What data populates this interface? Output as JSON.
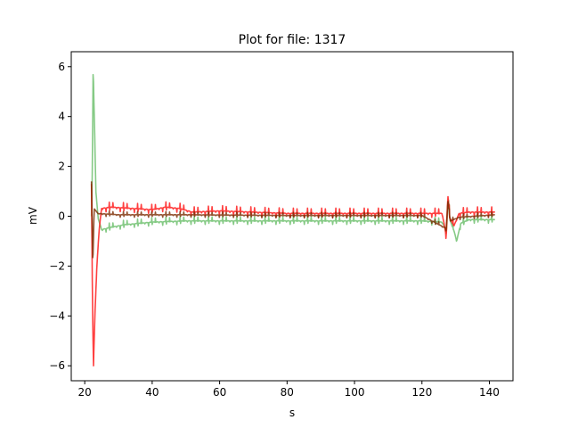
{
  "chart_data": {
    "type": "line",
    "title": "Plot for file: 1317",
    "xlabel": "s",
    "ylabel": "mV",
    "xlim": [
      16,
      147
    ],
    "ylim": [
      -6.6,
      6.6
    ],
    "x_ticks": [
      20,
      40,
      60,
      80,
      100,
      120,
      140
    ],
    "y_ticks": [
      -6,
      -4,
      -2,
      0,
      2,
      4,
      6
    ],
    "grid": false,
    "legend": "none",
    "series": [
      {
        "color": "#5cb85c",
        "alpha": 0.75,
        "start": 22.0,
        "end": 141.7,
        "anchors": [
          [
            22.0,
            0
          ],
          [
            22.2,
            1.2
          ],
          [
            22.5,
            6.0
          ],
          [
            22.9,
            3.6
          ],
          [
            23.3,
            1.0
          ],
          [
            24.0,
            -0.1
          ],
          [
            25.0,
            -0.55
          ],
          [
            28,
            -0.45
          ],
          [
            32,
            -0.35
          ],
          [
            40,
            -0.25
          ],
          [
            50,
            -0.2
          ],
          [
            60,
            -0.2
          ],
          [
            80,
            -0.2
          ],
          [
            100,
            -0.2
          ],
          [
            120,
            -0.2
          ],
          [
            126,
            -0.25
          ],
          [
            127.3,
            -0.6
          ],
          [
            127.8,
            0.7
          ],
          [
            128.4,
            -0.2
          ],
          [
            129.5,
            -0.6
          ],
          [
            130.3,
            -1.0
          ],
          [
            131.5,
            -0.3
          ],
          [
            134,
            -0.15
          ],
          [
            141.7,
            -0.15
          ]
        ],
        "ripple_amp": 0.22,
        "ripple_period": 1.05
      },
      {
        "color": "#ff1f1f",
        "alpha": 0.85,
        "start": 22.0,
        "end": 141.7,
        "anchors": [
          [
            22.0,
            1.3
          ],
          [
            22.3,
            -3.5
          ],
          [
            22.6,
            -6.0
          ],
          [
            23.0,
            -4.0
          ],
          [
            23.6,
            -2.0
          ],
          [
            24.3,
            -0.5
          ],
          [
            25.0,
            0.3
          ],
          [
            28,
            0.35
          ],
          [
            40,
            0.25
          ],
          [
            44,
            0.35
          ],
          [
            48,
            0.3
          ],
          [
            52,
            0.15
          ],
          [
            60,
            0.2
          ],
          [
            80,
            0.1
          ],
          [
            100,
            0.1
          ],
          [
            120,
            0.1
          ],
          [
            126,
            0.1
          ],
          [
            127.2,
            -0.8
          ],
          [
            127.7,
            0.8
          ],
          [
            128.3,
            -0.1
          ],
          [
            129.5,
            -0.4
          ],
          [
            131,
            0.1
          ],
          [
            134,
            0.15
          ],
          [
            141.7,
            0.15
          ]
        ],
        "ripple_amp": 0.25,
        "ripple_period": 1.05
      },
      {
        "color": "#7a2a00",
        "alpha": 0.8,
        "start": 22.0,
        "end": 141.7,
        "anchors": [
          [
            22.0,
            1.4
          ],
          [
            22.4,
            -2.0
          ],
          [
            22.8,
            0.3
          ],
          [
            24,
            0.1
          ],
          [
            30,
            0.05
          ],
          [
            50,
            0.05
          ],
          [
            80,
            0.02
          ],
          [
            120,
            0.02
          ],
          [
            127.2,
            -0.5
          ],
          [
            127.7,
            0.6
          ],
          [
            128.4,
            -0.2
          ],
          [
            131,
            -0.05
          ],
          [
            141.7,
            0.05
          ]
        ],
        "ripple_amp": 0.15,
        "ripple_period": 1.05
      }
    ]
  }
}
